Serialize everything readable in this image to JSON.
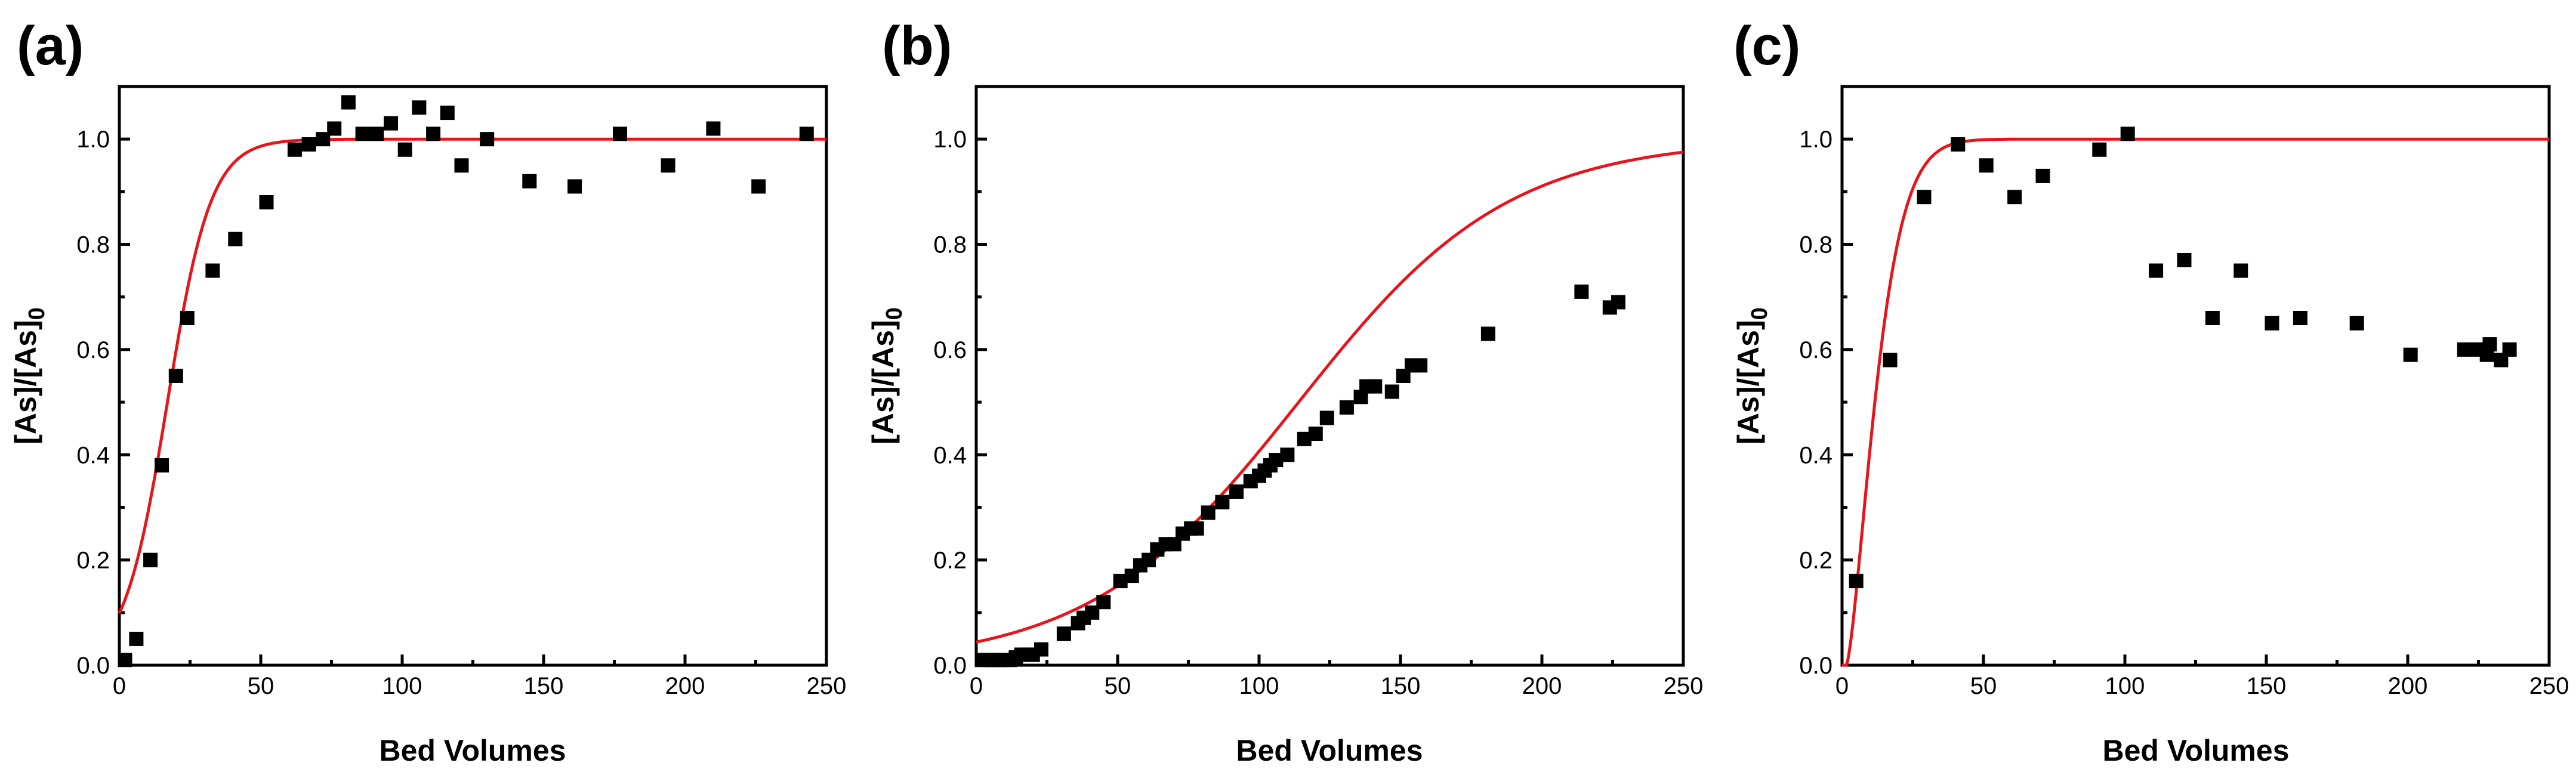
{
  "figure": {
    "panels": [
      {
        "label": "(a)"
      },
      {
        "label": "(b)"
      },
      {
        "label": "(c)"
      }
    ]
  },
  "colors": {
    "fit": "#e8141b",
    "points": "#000000",
    "axes": "#000000"
  },
  "chart_data": [
    {
      "type": "scatter",
      "panel": "(a)",
      "xlabel": "Bed Volumes",
      "ylabel_main": "[As]/[As]",
      "ylabel_sub": "0",
      "xlim": [
        0,
        250
      ],
      "ylim": [
        0,
        1.1
      ],
      "xticks": [
        0,
        50,
        100,
        150,
        200,
        250
      ],
      "yticks": [
        0.0,
        0.2,
        0.4,
        0.6,
        0.8,
        1.0
      ],
      "ytick_labels": [
        "0.0",
        "0.2",
        "0.4",
        "0.6",
        "0.8",
        "1.0"
      ],
      "grid": false,
      "series": [
        {
          "name": "measured",
          "marker": "square",
          "x": [
            2,
            6,
            11,
            15,
            20,
            24,
            33,
            41,
            52,
            62,
            67,
            72,
            76,
            81,
            86,
            91,
            96,
            101,
            106,
            111,
            116,
            121,
            130,
            145,
            161,
            177,
            194,
            210,
            226,
            243
          ],
          "y": [
            0.01,
            0.05,
            0.2,
            0.38,
            0.55,
            0.66,
            0.75,
            0.81,
            0.88,
            0.98,
            0.99,
            1.0,
            1.02,
            1.07,
            1.01,
            1.01,
            1.03,
            0.98,
            1.06,
            1.01,
            1.05,
            0.95,
            1.0,
            0.92,
            0.91,
            1.01,
            0.95,
            1.02,
            0.91,
            1.01
          ]
        },
        {
          "name": "model fit",
          "line": "solid",
          "model": "logistic",
          "params": {
            "k": 0.13,
            "x0": 17
          }
        }
      ]
    },
    {
      "type": "scatter",
      "panel": "(b)",
      "xlabel": "Bed Volumes",
      "ylabel_main": "[As]/[As]",
      "ylabel_sub": "0",
      "xlim": [
        0,
        250
      ],
      "ylim": [
        0,
        1.1
      ],
      "xticks": [
        0,
        50,
        100,
        150,
        200,
        250
      ],
      "yticks": [
        0.0,
        0.2,
        0.4,
        0.6,
        0.8,
        1.0
      ],
      "ytick_labels": [
        "0.0",
        "0.2",
        "0.4",
        "0.6",
        "0.8",
        "1.0"
      ],
      "grid": false,
      "series": [
        {
          "name": "measured",
          "marker": "square",
          "x": [
            2,
            4,
            6,
            8,
            10,
            12,
            14,
            16,
            18,
            20,
            23,
            31,
            36,
            38,
            41,
            45,
            51,
            55,
            58,
            61,
            64,
            67,
            70,
            73,
            76,
            78,
            82,
            87,
            92,
            97,
            100,
            102,
            104,
            106,
            110,
            116,
            120,
            124,
            131,
            136,
            138,
            141,
            147,
            151,
            154,
            157,
            181,
            214,
            224,
            227
          ],
          "y": [
            0.01,
            0.01,
            0.01,
            0.01,
            0.01,
            0.01,
            0.015,
            0.02,
            0.02,
            0.02,
            0.03,
            0.06,
            0.08,
            0.09,
            0.1,
            0.12,
            0.16,
            0.17,
            0.19,
            0.2,
            0.22,
            0.23,
            0.23,
            0.25,
            0.26,
            0.26,
            0.29,
            0.31,
            0.33,
            0.35,
            0.36,
            0.37,
            0.38,
            0.39,
            0.4,
            0.43,
            0.44,
            0.47,
            0.49,
            0.51,
            0.53,
            0.53,
            0.52,
            0.55,
            0.57,
            0.57,
            0.63,
            0.71,
            0.68,
            0.69
          ]
        },
        {
          "name": "model fit",
          "line": "solid",
          "model": "tanh",
          "params": {
            "a": 0.0135,
            "x0": 114
          }
        }
      ]
    },
    {
      "type": "scatter",
      "panel": "(c)",
      "xlabel": "Bed Volumes",
      "ylabel_main": "[As]/[As]",
      "ylabel_sub": "0",
      "xlim": [
        0,
        250
      ],
      "ylim": [
        0,
        1.1
      ],
      "xticks": [
        0,
        50,
        100,
        150,
        200,
        250
      ],
      "yticks": [
        0.0,
        0.2,
        0.4,
        0.6,
        0.8,
        1.0
      ],
      "ytick_labels": [
        "0.0",
        "0.2",
        "0.4",
        "0.6",
        "0.8",
        "1.0"
      ],
      "grid": false,
      "series": [
        {
          "name": "measured",
          "marker": "square",
          "x": [
            5,
            17,
            29,
            41,
            51,
            61,
            71,
            91,
            101,
            111,
            121,
            131,
            141,
            152,
            162,
            182,
            201,
            220,
            225,
            228,
            229,
            233,
            236
          ],
          "y": [
            0.16,
            0.58,
            0.89,
            0.99,
            0.95,
            0.89,
            0.93,
            0.98,
            1.01,
            0.75,
            0.77,
            0.66,
            0.75,
            0.65,
            0.66,
            0.65,
            0.59,
            0.6,
            0.6,
            0.59,
            0.61,
            0.58,
            0.6
          ]
        },
        {
          "name": "model fit",
          "line": "solid",
          "model": "weibull",
          "params": {
            "x0": 1.5,
            "lambda": 13,
            "k": 1.45
          }
        }
      ]
    }
  ]
}
